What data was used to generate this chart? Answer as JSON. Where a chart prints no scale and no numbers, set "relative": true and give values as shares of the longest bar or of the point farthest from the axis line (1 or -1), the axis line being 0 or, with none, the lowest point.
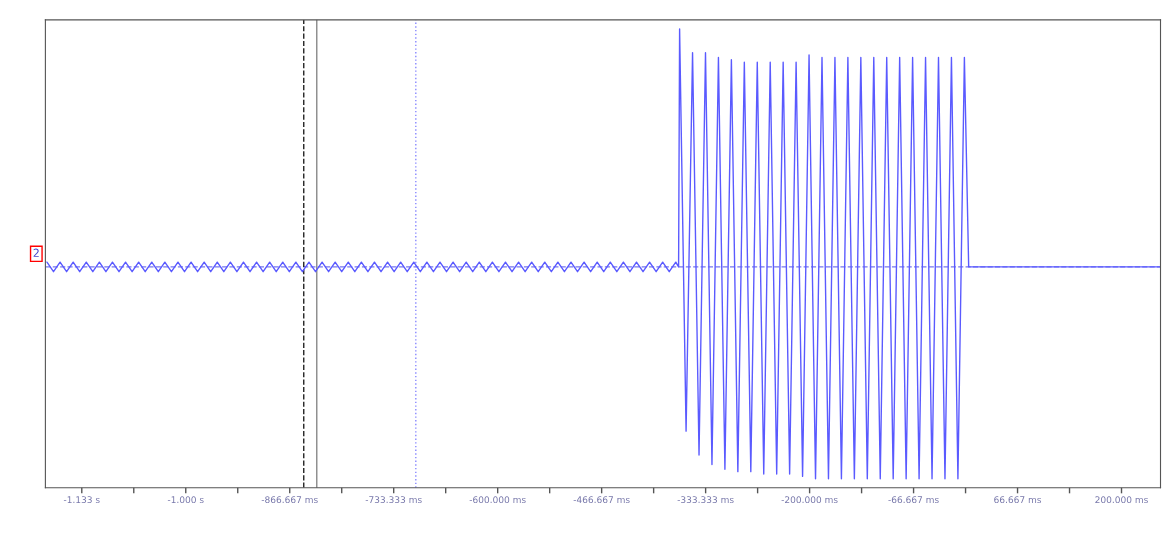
{
  "chart_data": {
    "type": "line",
    "relative": true,
    "grid": false,
    "legend": false,
    "line_style": "solid",
    "marker": "none",
    "xlim": [
      -1180,
      250
    ],
    "xticks": [
      {
        "value": -1133.333,
        "label": "-1.133 s"
      },
      {
        "value": -1066.667,
        "label": null
      },
      {
        "value": -1000,
        "label": "-1.000 s"
      },
      {
        "value": -933.333,
        "label": null
      },
      {
        "value": -866.667,
        "label": "-866.667 ms"
      },
      {
        "value": -800,
        "label": null
      },
      {
        "value": -733.333,
        "label": "-733.333 ms"
      },
      {
        "value": -666.667,
        "label": null
      },
      {
        "value": -600,
        "label": "-600.000 ms"
      },
      {
        "value": -533.333,
        "label": null
      },
      {
        "value": -466.667,
        "label": "-466.667 ms"
      },
      {
        "value": -400,
        "label": null
      },
      {
        "value": -333.333,
        "label": "-333.333 ms"
      },
      {
        "value": -266.667,
        "label": null
      },
      {
        "value": -200,
        "label": "-200.000 ms"
      },
      {
        "value": -133.333,
        "label": null
      },
      {
        "value": -66.667,
        "label": "-66.667 ms"
      },
      {
        "value": 0,
        "label": null
      },
      {
        "value": 66.667,
        "label": "66.667 ms"
      },
      {
        "value": 133.333,
        "label": null
      },
      {
        "value": 200,
        "label": "200.000 ms"
      }
    ],
    "ref_lines": [
      {
        "axis": "y",
        "value": 0,
        "color": "#7777ee",
        "line_style": "dashed"
      },
      {
        "axis": "x",
        "value": -848.7,
        "color": "#222222",
        "line_style": "dashed"
      },
      {
        "axis": "x",
        "value": -832,
        "color": "#888888",
        "line_style": "solid"
      },
      {
        "axis": "x",
        "value": -705,
        "color": "#8888ff",
        "line_style": "dotted"
      }
    ],
    "annotations": [
      "2"
    ],
    "series": [
      {
        "color": "#5a5aff",
        "x": [
          -1178.0,
          -1169.6,
          -1161.2,
          -1152.8,
          -1144.4,
          -1136.0,
          -1127.6,
          -1119.2,
          -1110.8,
          -1102.4,
          -1094.0,
          -1085.6,
          -1077.2,
          -1068.8,
          -1060.4,
          -1052.0,
          -1043.6,
          -1035.2,
          -1026.8,
          -1018.4,
          -1010.0,
          -1001.6,
          -993.2,
          -984.8,
          -976.4,
          -968.0,
          -959.6,
          -951.2,
          -942.8,
          -934.4,
          -926.0,
          -917.6,
          -909.2,
          -900.8,
          -892.4,
          -884.0,
          -875.6,
          -867.2,
          -858.8,
          -850.4,
          -842.0,
          -833.6,
          -825.2,
          -816.8,
          -808.4,
          -800.0,
          -791.6,
          -783.2,
          -774.8,
          -766.4,
          -758.0,
          -749.6,
          -741.2,
          -732.8,
          -724.4,
          -716.0,
          -707.6,
          -699.2,
          -690.8,
          -682.4,
          -674.0,
          -665.6,
          -657.2,
          -648.8,
          -640.4,
          -632.0,
          -623.6,
          -615.2,
          -606.8,
          -598.4,
          -590.0,
          -581.6,
          -573.2,
          -564.8,
          -556.4,
          -548.0,
          -539.6,
          -531.2,
          -522.8,
          -514.4,
          -506.0,
          -497.6,
          -489.2,
          -480.8,
          -472.4,
          -464.0,
          -455.6,
          -447.2,
          -438.8,
          -430.4,
          -422.0,
          -413.6,
          -405.2,
          -396.8,
          -388.4,
          -380.0,
          -371.6,
          -368.0,
          -366.7,
          -358.4,
          -350.1,
          -341.8,
          -333.5,
          -325.2,
          -316.9,
          -308.6,
          -300.3,
          -292.0,
          -283.7,
          -275.4,
          -267.1,
          -258.8,
          -250.5,
          -242.2,
          -233.9,
          -225.6,
          -217.3,
          -209.0,
          -200.7,
          -192.4,
          -184.1,
          -175.8,
          -167.5,
          -159.2,
          -150.9,
          -142.6,
          -134.3,
          -126.0,
          -117.7,
          -109.4,
          -101.1,
          -92.8,
          -84.5,
          -76.2,
          -67.9,
          -59.6,
          -51.3,
          -43.0,
          -34.7,
          -26.4,
          -18.1,
          -9.8,
          -1.5,
          4.0,
          250.0
        ],
        "values": [
          0.02,
          -0.02,
          0.02,
          -0.02,
          0.02,
          -0.02,
          0.02,
          -0.02,
          0.02,
          -0.02,
          0.02,
          -0.02,
          0.02,
          -0.02,
          0.02,
          -0.02,
          0.02,
          -0.02,
          0.02,
          -0.02,
          0.02,
          -0.02,
          0.02,
          -0.02,
          0.02,
          -0.02,
          0.02,
          -0.02,
          0.02,
          -0.02,
          0.02,
          -0.02,
          0.02,
          -0.02,
          0.02,
          -0.02,
          0.02,
          -0.02,
          0.02,
          -0.02,
          0.02,
          -0.02,
          0.02,
          -0.02,
          0.02,
          -0.02,
          0.02,
          -0.02,
          0.02,
          -0.02,
          0.02,
          -0.02,
          0.02,
          -0.02,
          0.02,
          -0.02,
          0.02,
          -0.02,
          0.02,
          -0.02,
          0.02,
          -0.02,
          0.02,
          -0.02,
          0.02,
          -0.02,
          0.02,
          -0.02,
          0.02,
          -0.02,
          0.02,
          -0.02,
          0.02,
          -0.02,
          0.02,
          -0.02,
          0.02,
          -0.02,
          0.02,
          -0.02,
          0.02,
          -0.02,
          0.02,
          -0.02,
          0.02,
          -0.02,
          0.02,
          -0.02,
          0.02,
          -0.02,
          0.02,
          -0.02,
          0.02,
          -0.02,
          0.02,
          -0.02,
          0.02,
          0,
          1.0,
          -0.69,
          0.9,
          -0.79,
          0.9,
          -0.83,
          0.88,
          -0.85,
          0.87,
          -0.86,
          0.86,
          -0.86,
          0.86,
          -0.87,
          0.86,
          -0.87,
          0.86,
          -0.87,
          0.86,
          -0.88,
          0.89,
          -0.89,
          0.88,
          -0.89,
          0.88,
          -0.89,
          0.88,
          -0.89,
          0.88,
          -0.89,
          0.88,
          -0.89,
          0.88,
          -0.89,
          0.88,
          -0.89,
          0.88,
          -0.89,
          0.88,
          -0.89,
          0.88,
          -0.89,
          0.88,
          -0.89,
          0.88,
          0,
          0
        ]
      }
    ]
  }
}
